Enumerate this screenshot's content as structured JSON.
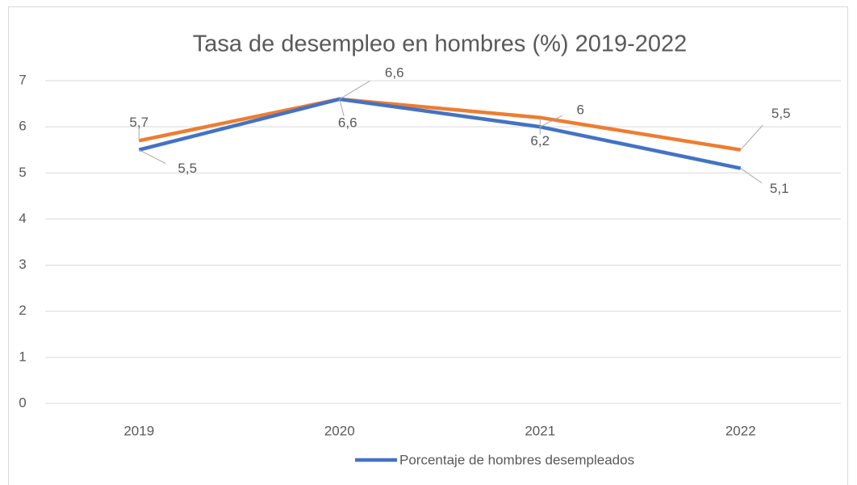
{
  "chart_data": {
    "type": "line",
    "title": "Tasa de desempleo en hombres (%) 2019-2022",
    "categories": [
      "2019",
      "2020",
      "2021",
      "2022"
    ],
    "series": [
      {
        "name": "Porcentaje de hombres desempleados",
        "color": "#4472c4",
        "values": [
          5.5,
          6.6,
          6.0,
          5.1
        ],
        "value_labels": [
          "5,5",
          "6,6",
          "6",
          "5,1"
        ]
      },
      {
        "color": "#ed7d31",
        "values": [
          5.7,
          6.6,
          6.2,
          5.5
        ],
        "value_labels": [
          "5,7",
          "6,6",
          "6,2",
          "5,5"
        ]
      }
    ],
    "ylim": [
      0,
      7
    ],
    "yticks": [
      0,
      1,
      2,
      3,
      4,
      5,
      6,
      7
    ],
    "grid": true,
    "legend": "bottom"
  }
}
